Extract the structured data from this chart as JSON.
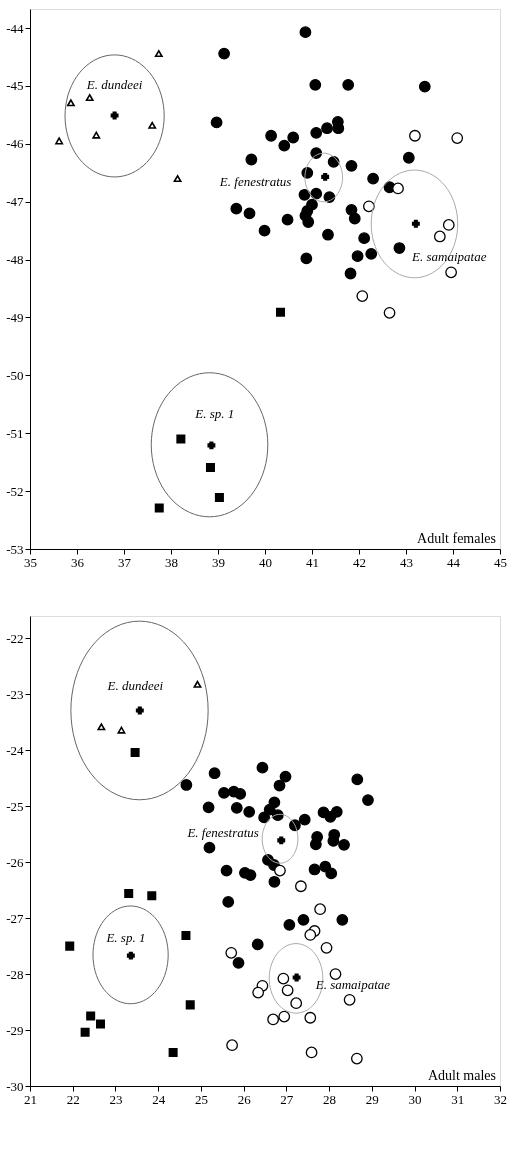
{
  "chart_data": [
    {
      "type": "scatter",
      "xlim": [
        35,
        45
      ],
      "ylim": [
        -53,
        -43.67
      ],
      "xticks": [
        35,
        36,
        37,
        38,
        39,
        40,
        41,
        42,
        43,
        44,
        45
      ],
      "yticks": [
        -53,
        -52,
        -51,
        -50,
        -49,
        -48,
        -47,
        -46,
        -45,
        -44
      ],
      "grid": false,
      "annotations": [
        "E. dundeei",
        "E. fenestratus",
        "E. samaipatae",
        "E. sp. 1",
        "Adult females"
      ],
      "series": [
        {
          "marker": "triangle",
          "color": "#ffffff",
          "x": [
            35.62,
            35.87,
            36.27,
            36.41,
            37.6,
            37.74,
            38.14
          ],
          "values": [
            -45.95,
            -45.29,
            -45.2,
            -45.85,
            -45.68,
            -44.44,
            -46.6
          ]
        },
        {
          "marker": "circle",
          "color": "#000000",
          "x": [
            40.86,
            39.13,
            41.07,
            41.77,
            43.4,
            38.97,
            41.55,
            41.32,
            41.56,
            41.09,
            40.13,
            40.6,
            40.41,
            39.71,
            41.09,
            41.46,
            41.84,
            43.06,
            40.9,
            42.3,
            42.65,
            40.84,
            41.09,
            41.37,
            41.0,
            40.9,
            40.86,
            40.92,
            39.39,
            39.67,
            40.48,
            39.99,
            41.34,
            41.84,
            41.91,
            42.11,
            42.86,
            41.97,
            42.26,
            40.88,
            41.82
          ],
          "values": [
            -44.07,
            -44.44,
            -44.98,
            -44.98,
            -45.01,
            -45.63,
            -45.62,
            -45.73,
            -45.73,
            -45.81,
            -45.86,
            -45.89,
            -46.03,
            -46.27,
            -46.16,
            -46.31,
            -46.38,
            -46.24,
            -46.5,
            -46.6,
            -46.75,
            -46.88,
            -46.86,
            -46.92,
            -47.05,
            -47.16,
            -47.24,
            -47.35,
            -47.12,
            -47.2,
            -47.31,
            -47.5,
            -47.57,
            -47.14,
            -47.29,
            -47.63,
            -47.8,
            -47.94,
            -47.9,
            -47.98,
            -48.24
          ]
        },
        {
          "marker": "circle",
          "color": "#ffffff",
          "x": [
            43.19,
            44.09,
            42.83,
            42.21,
            43.91,
            43.72,
            43.96,
            42.07,
            42.65
          ],
          "values": [
            -45.86,
            -45.9,
            -46.77,
            -47.08,
            -47.4,
            -47.6,
            -48.22,
            -48.63,
            -48.92
          ]
        },
        {
          "marker": "square",
          "color": "#000000",
          "x": [
            40.33,
            38.21,
            38.84,
            39.03,
            37.75
          ],
          "values": [
            -48.91,
            -51.1,
            -51.59,
            -52.11,
            -52.29
          ]
        },
        {
          "marker": "cross",
          "color": "#000000",
          "x": [
            36.8,
            41.28,
            43.21,
            38.86
          ],
          "values": [
            -45.51,
            -46.57,
            -47.38,
            -51.21
          ]
        }
      ]
    },
    {
      "type": "scatter",
      "xlim": [
        21,
        32
      ],
      "ylim": [
        -30,
        -21.6
      ],
      "xticks": [
        21,
        22,
        23,
        24,
        25,
        26,
        27,
        28,
        29,
        30,
        31,
        32
      ],
      "yticks": [
        -30,
        -29,
        -28,
        -27,
        -26,
        -25,
        -24,
        -23,
        -22
      ],
      "grid": false,
      "annotations": [
        "E. dundeei",
        "E. fenestratus",
        "E. samaipatae",
        "E. sp. 1",
        "Adult males"
      ],
      "series": [
        {
          "marker": "triangle",
          "color": "#ffffff",
          "x": [
            22.67,
            23.14,
            24.92
          ],
          "values": [
            -23.58,
            -23.64,
            -22.82
          ]
        },
        {
          "marker": "circle",
          "color": "#000000",
          "x": [
            24.66,
            25.32,
            26.44,
            26.98,
            26.84,
            28.66,
            28.91,
            25.54,
            25.77,
            25.92,
            25.18,
            25.84,
            26.13,
            26.72,
            26.61,
            26.8,
            26.48,
            27.43,
            27.2,
            27.87,
            28.03,
            28.18,
            27.72,
            27.69,
            28.12,
            28.1,
            28.35,
            25.2,
            26.57,
            26.71,
            25.6,
            26.03,
            26.16,
            27.66,
            27.91,
            28.05,
            26.72,
            25.64,
            27.4,
            27.07,
            28.31,
            26.33,
            25.88
          ],
          "values": [
            -24.62,
            -24.41,
            -24.31,
            -24.47,
            -24.63,
            -24.52,
            -24.89,
            -24.76,
            -24.74,
            -24.78,
            -25.02,
            -25.03,
            -25.1,
            -24.93,
            -25.06,
            -25.16,
            -25.2,
            -25.24,
            -25.34,
            -25.11,
            -25.19,
            -25.1,
            -25.55,
            -25.68,
            -25.51,
            -25.62,
            -25.69,
            -25.74,
            -25.96,
            -26.05,
            -26.15,
            -26.19,
            -26.23,
            -26.13,
            -26.08,
            -26.2,
            -26.35,
            -26.71,
            -27.03,
            -27.12,
            -27.03,
            -27.47,
            -27.8
          ]
        },
        {
          "marker": "circle",
          "color": "#ffffff",
          "x": [
            26.85,
            27.34,
            27.79,
            27.66,
            27.56,
            27.94,
            25.71,
            28.15,
            26.93,
            26.44,
            26.34,
            27.03,
            27.23,
            28.48,
            26.69,
            26.95,
            27.56,
            25.73,
            27.59,
            28.65
          ],
          "values": [
            -26.15,
            -26.43,
            -26.84,
            -27.23,
            -27.3,
            -27.53,
            -27.62,
            -28.0,
            -28.08,
            -28.21,
            -28.33,
            -28.29,
            -28.52,
            -28.46,
            -28.81,
            -28.76,
            -28.78,
            -29.27,
            -29.4,
            -29.51
          ]
        },
        {
          "marker": "square",
          "color": "#000000",
          "x": [
            23.46,
            23.31,
            23.85,
            21.93,
            24.65,
            24.75,
            22.42,
            22.65,
            22.29,
            24.35
          ],
          "values": [
            -24.04,
            -26.56,
            -26.6,
            -27.5,
            -27.31,
            -28.55,
            -28.75,
            -28.89,
            -29.04,
            -29.4
          ]
        },
        {
          "marker": "cross",
          "color": "#000000",
          "x": [
            23.57,
            26.88,
            27.24,
            23.36
          ],
          "values": [
            -23.29,
            -25.61,
            -28.06,
            -27.67
          ]
        }
      ]
    }
  ]
}
